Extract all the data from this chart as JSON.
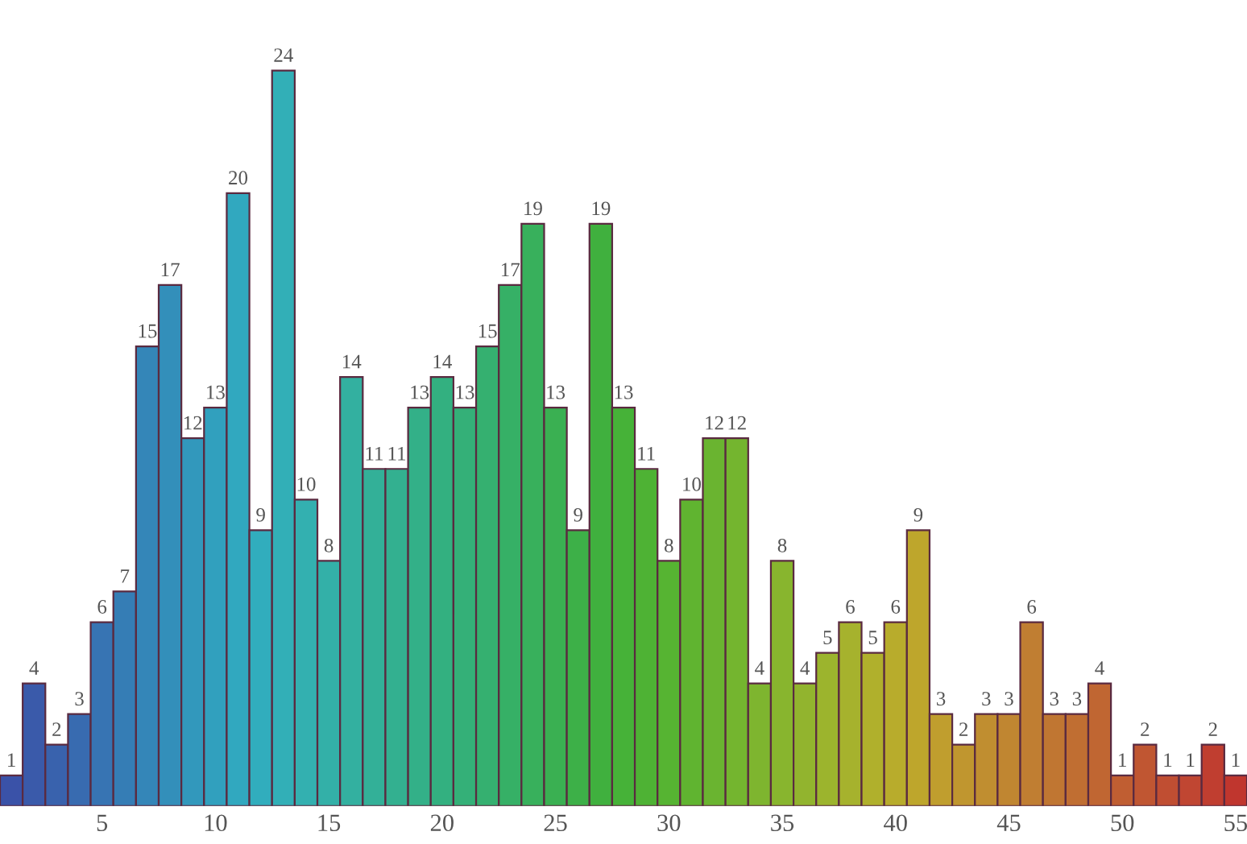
{
  "chart_data": {
    "type": "bar",
    "categories": [
      null,
      null,
      null,
      null,
      "5",
      null,
      null,
      null,
      null,
      "10",
      null,
      null,
      null,
      null,
      "15",
      null,
      null,
      null,
      null,
      "20",
      null,
      null,
      null,
      null,
      "25",
      null,
      null,
      null,
      null,
      "30",
      null,
      null,
      null,
      null,
      "35",
      null,
      null,
      null,
      null,
      "40",
      null,
      null,
      null,
      null,
      "45",
      null,
      null,
      null,
      null,
      "50",
      null,
      null,
      null,
      null,
      "55"
    ],
    "values": [
      1,
      4,
      2,
      3,
      6,
      7,
      15,
      17,
      12,
      13,
      20,
      9,
      24,
      10,
      8,
      14,
      11,
      11,
      13,
      14,
      13,
      15,
      17,
      19,
      13,
      9,
      19,
      13,
      11,
      8,
      10,
      12,
      12,
      4,
      8,
      4,
      5,
      6,
      5,
      6,
      9,
      3,
      2,
      3,
      3,
      6,
      3,
      3,
      4,
      1,
      2,
      1,
      1,
      2,
      1
    ],
    "colors": [
      "#3a52a8",
      "#3a5aaa",
      "#3962ad",
      "#386bb0",
      "#3774b3",
      "#357db5",
      "#3486b8",
      "#338fba",
      "#3298bc",
      "#31a0be",
      "#31a8bf",
      "#31adbd",
      "#32afb7",
      "#33b0b0",
      "#33b0a8",
      "#33b0a0",
      "#33b098",
      "#33b090",
      "#33b088",
      "#33b080",
      "#34b078",
      "#35b070",
      "#36b066",
      "#38b05c",
      "#3ab052",
      "#3db048",
      "#40b03e",
      "#46b238",
      "#4eb234",
      "#56b432",
      "#60b430",
      "#6ab430",
      "#74b52f",
      "#7eb52f",
      "#88b52e",
      "#92b42e",
      "#9cb42d",
      "#a6b22d",
      "#b0b02c",
      "#b8ac2c",
      "#bea62c",
      "#c09e2e",
      "#c0962f",
      "#c08e30",
      "#c08631",
      "#c07e32",
      "#c07632",
      "#c06e32",
      "#c06632",
      "#c05e32",
      "#c05632",
      "#c04e32",
      "#c04632",
      "#c03e30",
      "#c0362e"
    ],
    "tick_labels": "x",
    "data_labels": true
  }
}
